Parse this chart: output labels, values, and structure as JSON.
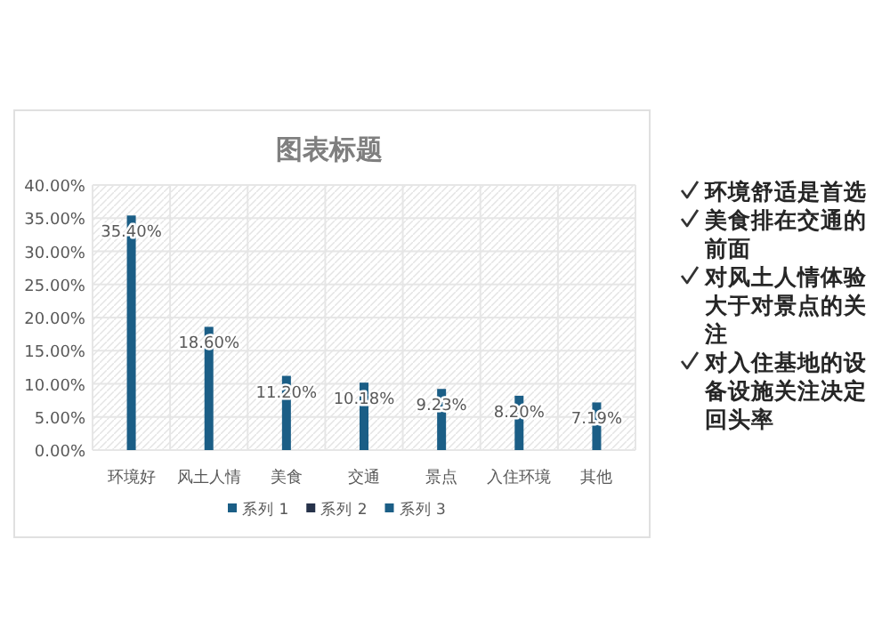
{
  "chart_data": {
    "type": "bar",
    "title": "图表标题",
    "categories": [
      "环境好",
      "风土人情",
      "美食",
      "交通",
      "景点",
      "入住环境",
      "其他"
    ],
    "series": [
      {
        "name": "系列 1",
        "color": "#1b5e86",
        "values": [
          35.4,
          18.6,
          11.2,
          10.18,
          9.23,
          8.2,
          7.19
        ],
        "value_labels": [
          "35.40%",
          "18.60%",
          "11.20%",
          "10.18%",
          "9.23%",
          "8.20%",
          "7.19%"
        ]
      },
      {
        "name": "系列 2",
        "color": "#26324a",
        "values": [
          null,
          null,
          null,
          null,
          null,
          null,
          null
        ]
      },
      {
        "name": "系列 3",
        "color": "#1b5e86",
        "values": [
          null,
          null,
          null,
          null,
          null,
          null,
          null
        ]
      }
    ],
    "ylim": [
      0,
      40
    ],
    "yticks": [
      {
        "value": 0,
        "label": "0.00%"
      },
      {
        "value": 5,
        "label": "5.00%"
      },
      {
        "value": 10,
        "label": "10.00%"
      },
      {
        "value": 15,
        "label": "15.00%"
      },
      {
        "value": 20,
        "label": "20.00%"
      },
      {
        "value": 25,
        "label": "25.00%"
      },
      {
        "value": 30,
        "label": "30.00%"
      },
      {
        "value": 35,
        "label": "35.00%"
      },
      {
        "value": 40,
        "label": "40.00%"
      }
    ],
    "grid": true,
    "legend": "bottom",
    "annotations": [
      "环境舒适是首选",
      "美食排在交通的前面",
      "对风土人情体验大于对景点的关注",
      "对入住基地的设备设施关注决定回头率"
    ]
  }
}
